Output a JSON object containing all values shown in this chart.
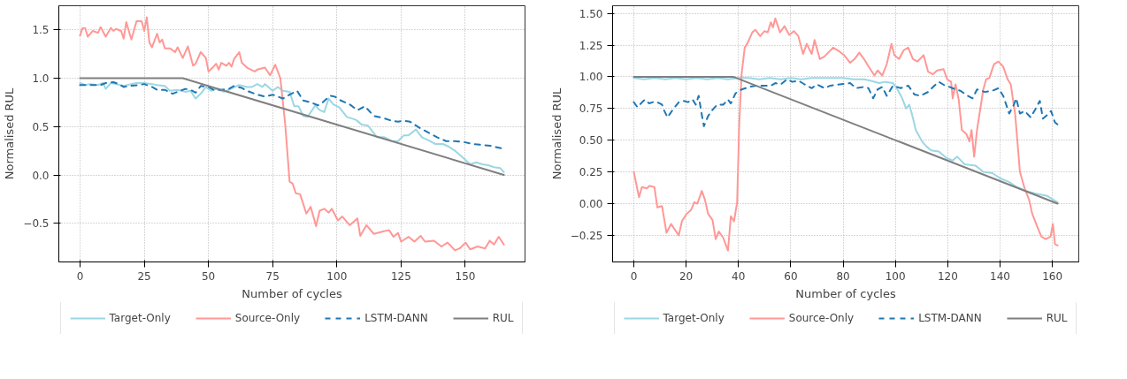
{
  "chart_data": [
    {
      "type": "line",
      "xlabel": "Number of cycles",
      "ylabel": "Normalised RUL",
      "xlim": [
        -8.25,
        173.25
      ],
      "ylim": [
        -0.9,
        1.75
      ],
      "xticks": [
        0,
        25,
        50,
        75,
        100,
        125,
        150
      ],
      "yticks": [
        -0.5,
        {
          "value": 0,
          "label": "0.0"
        },
        0.5,
        {
          "value": 1,
          "label": "1.0"
        },
        1.5
      ],
      "grid": true,
      "legend": "bottom",
      "series": [
        {
          "name": "Target-Only",
          "color": "#9bd7e3",
          "line_style": "solid",
          "x": [
            0,
            2,
            4,
            7,
            9,
            10,
            12,
            14,
            17,
            20,
            22,
            25,
            28,
            30,
            33,
            35,
            38,
            41,
            43,
            45,
            47,
            49,
            51,
            53,
            56,
            58,
            61,
            62,
            65,
            67,
            69,
            71,
            72,
            75,
            77,
            79,
            81.6,
            83.4,
            85.1,
            86.9,
            88.6,
            91.6,
            93.3,
            95.1,
            96.8,
            98.6,
            100.9,
            103.9,
            107.4,
            109.7,
            112.1,
            115.6,
            118.5,
            121.4,
            123.8,
            126.1,
            127.9,
            130.8,
            133.1,
            135.5,
            138.4,
            141.3,
            143.7,
            146,
            149.5,
            151.9,
            154.2,
            156.6,
            158.9,
            161.2,
            163.6,
            165
          ],
          "values": [
            0.95,
            0.93,
            0.94,
            0.93,
            0.95,
            0.89,
            0.95,
            0.94,
            0.92,
            0.94,
            0.95,
            0.95,
            0.94,
            0.93,
            0.92,
            0.87,
            0.88,
            0.86,
            0.87,
            0.79,
            0.84,
            0.91,
            0.87,
            0.89,
            0.86,
            0.88,
            0.92,
            0.93,
            0.91,
            0.91,
            0.94,
            0.91,
            0.94,
            0.87,
            0.91,
            0.87,
            0.86,
            0.71,
            0.71,
            0.61,
            0.6,
            0.72,
            0.67,
            0.65,
            0.79,
            0.73,
            0.7,
            0.6,
            0.57,
            0.52,
            0.51,
            0.39,
            0.39,
            0.35,
            0.35,
            0.41,
            0.41,
            0.47,
            0.39,
            0.36,
            0.32,
            0.32,
            0.29,
            0.25,
            0.17,
            0.11,
            0.13,
            0.11,
            0.1,
            0.08,
            0.07,
            0.03
          ]
        },
        {
          "name": "Source-Only",
          "color": "#ff9896",
          "line_style": "solid",
          "x": [
            0,
            1,
            2,
            3,
            5,
            7,
            8,
            10,
            12,
            13,
            14,
            16,
            17,
            18,
            20,
            22,
            24,
            25,
            26,
            27,
            28,
            30,
            31,
            32,
            33,
            35,
            37,
            38,
            40,
            42,
            44,
            45,
            47,
            49,
            50,
            52,
            53,
            54,
            55,
            57,
            58,
            59,
            60,
            62,
            63,
            65,
            68,
            69,
            72,
            74,
            76,
            78,
            79.9,
            81.6,
            82.8,
            84,
            85.7,
            88.1,
            89.8,
            91.9,
            93.3,
            95.1,
            96.8,
            98,
            100.4,
            102.1,
            105,
            108,
            109.1,
            111.5,
            114.4,
            117.3,
            120.3,
            122,
            123.8,
            125,
            127.9,
            130.2,
            132.6,
            134.3,
            137.8,
            140.7,
            143.1,
            146,
            147.8,
            150.1,
            151.9,
            154.8,
            157.7,
            159.5,
            161.2,
            163,
            165
          ],
          "values": [
            1.44,
            1.52,
            1.52,
            1.43,
            1.49,
            1.47,
            1.53,
            1.43,
            1.52,
            1.49,
            1.51,
            1.49,
            1.41,
            1.58,
            1.4,
            1.59,
            1.59,
            1.49,
            1.63,
            1.37,
            1.32,
            1.46,
            1.37,
            1.4,
            1.31,
            1.31,
            1.27,
            1.32,
            1.21,
            1.33,
            1.13,
            1.15,
            1.27,
            1.21,
            1.07,
            1.12,
            1.15,
            1.09,
            1.16,
            1.13,
            1.16,
            1.12,
            1.2,
            1.27,
            1.16,
            1.11,
            1.07,
            1.09,
            1.11,
            1.03,
            1.14,
            1.0,
            0.52,
            -0.07,
            -0.09,
            -0.19,
            -0.2,
            -0.4,
            -0.33,
            -0.53,
            -0.37,
            -0.35,
            -0.39,
            -0.35,
            -0.47,
            -0.43,
            -0.52,
            -0.45,
            -0.63,
            -0.52,
            -0.61,
            -0.59,
            -0.57,
            -0.64,
            -0.6,
            -0.69,
            -0.64,
            -0.69,
            -0.63,
            -0.69,
            -0.68,
            -0.74,
            -0.7,
            -0.78,
            -0.76,
            -0.7,
            -0.77,
            -0.74,
            -0.76,
            -0.68,
            -0.72,
            -0.64,
            -0.72
          ]
        },
        {
          "name": "LSTM-DANN",
          "color": "#1f77b4",
          "line_style": "dashed",
          "x": [
            0,
            4,
            8,
            10,
            13,
            15,
            17,
            19,
            23,
            25,
            28,
            30,
            33,
            36,
            38,
            41,
            43,
            45,
            47,
            50,
            52,
            55,
            58,
            60,
            63,
            65,
            69,
            72,
            75,
            77,
            79,
            81.6,
            84.5,
            86.9,
            89.8,
            92.7,
            94.5,
            97.4,
            99.2,
            101.5,
            105,
            108,
            110.9,
            114.4,
            117.9,
            121.4,
            123.8,
            126.1,
            128.5,
            132,
            135.5,
            139,
            142.5,
            146,
            149.5,
            153,
            156.6,
            160.1,
            164.8
          ],
          "values": [
            0.93,
            0.93,
            0.93,
            0.95,
            0.96,
            0.94,
            0.91,
            0.92,
            0.93,
            0.94,
            0.91,
            0.88,
            0.88,
            0.84,
            0.86,
            0.89,
            0.88,
            0.85,
            0.92,
            0.91,
            0.88,
            0.88,
            0.89,
            0.92,
            0.9,
            0.87,
            0.83,
            0.81,
            0.83,
            0.81,
            0.79,
            0.83,
            0.87,
            0.77,
            0.75,
            0.72,
            0.75,
            0.82,
            0.81,
            0.77,
            0.73,
            0.67,
            0.71,
            0.61,
            0.59,
            0.56,
            0.55,
            0.56,
            0.55,
            0.49,
            0.44,
            0.39,
            0.35,
            0.35,
            0.34,
            0.32,
            0.31,
            0.3,
            0.27
          ]
        },
        {
          "name": "RUL",
          "color": "#7f7f7f",
          "line_style": "solid",
          "x": [
            0,
            40,
            165
          ],
          "values": [
            1,
            1,
            0
          ]
        }
      ]
    },
    {
      "type": "line",
      "xlabel": "Number of cycles",
      "ylabel": "Normalised RUL",
      "xlim": [
        -8.1,
        170.1
      ],
      "ylim": [
        -0.46,
        1.56
      ],
      "xticks": [
        0,
        20,
        40,
        60,
        80,
        100,
        120,
        140,
        160
      ],
      "yticks": [
        {
          "value": -0.25,
          "label": "−0.25"
        },
        {
          "value": 0,
          "label": "0.00"
        },
        {
          "value": 0.25,
          "label": "0.25"
        },
        {
          "value": 0.5,
          "label": "0.50"
        },
        {
          "value": 0.75,
          "label": "0.75"
        },
        {
          "value": 1,
          "label": "1.00"
        },
        {
          "value": 1.25,
          "label": "1.25"
        },
        {
          "value": 1.5,
          "label": "1.50"
        }
      ],
      "grid": true,
      "legend": "bottom",
      "series": [
        {
          "name": "Target-Only",
          "color": "#9bd7e3",
          "line_style": "solid",
          "x": [
            0,
            4,
            8,
            12,
            16,
            20,
            24,
            28,
            32,
            36,
            40,
            44,
            48,
            52,
            56,
            60,
            64,
            68,
            72,
            76,
            80,
            84,
            88,
            90.3,
            93.8,
            96.1,
            99.1,
            100.8,
            102.6,
            104.1,
            105.3,
            106.4,
            107.8,
            110.2,
            111.9,
            113.7,
            116.6,
            119.5,
            121.9,
            123.6,
            126.5,
            130.6,
            133.6,
            137.1,
            140,
            143.5,
            146.4,
            149.9,
            153.4,
            158.1,
            162
          ],
          "values": [
            0.99,
            0.98,
            0.99,
            0.98,
            0.99,
            0.98,
            0.99,
            0.98,
            0.99,
            0.98,
            0.99,
            0.99,
            0.98,
            0.99,
            0.98,
            0.99,
            0.98,
            0.99,
            0.99,
            0.99,
            0.99,
            0.98,
            0.98,
            0.97,
            0.95,
            0.96,
            0.95,
            0.9,
            0.83,
            0.75,
            0.78,
            0.7,
            0.58,
            0.49,
            0.45,
            0.42,
            0.41,
            0.36,
            0.34,
            0.37,
            0.31,
            0.3,
            0.25,
            0.24,
            0.2,
            0.17,
            0.13,
            0.1,
            0.08,
            0.06,
            0.01
          ]
        },
        {
          "name": "Source-Only",
          "color": "#ff9896",
          "line_style": "solid",
          "x": [
            0,
            2,
            3.1,
            4.9,
            6.1,
            7.9,
            9,
            10.8,
            12.5,
            14.3,
            15.5,
            17.2,
            18.4,
            20.2,
            21.9,
            23.1,
            24.3,
            26,
            27.2,
            28.4,
            30.1,
            31.3,
            32.5,
            34.2,
            36,
            37.1,
            38.3,
            39.5,
            40.3,
            41.2,
            42.4,
            43.6,
            45.3,
            46.5,
            48.3,
            50,
            51.2,
            52.4,
            53.2,
            54.1,
            55.9,
            57.6,
            59.4,
            61.2,
            62.9,
            64.7,
            66.1,
            68,
            69.1,
            71.1,
            72.9,
            76.2,
            78.6,
            80.4,
            82.7,
            84.4,
            86.2,
            88,
            89.8,
            92,
            93.2,
            95,
            96.7,
            98.5,
            99.6,
            101.4,
            103.2,
            104.9,
            106.7,
            108.4,
            110.8,
            112.5,
            114.3,
            116,
            118.4,
            119.8,
            121.3,
            121.9,
            123,
            124.2,
            125.4,
            127.1,
            128.3,
            129.1,
            130.1,
            131.2,
            132.4,
            133.6,
            134.7,
            135.9,
            137.7,
            139.4,
            141.2,
            142.9,
            144.1,
            145.8,
            147.6,
            149.4,
            151.1,
            152.3,
            154,
            155.8,
            157.5,
            159.3,
            160.2,
            161,
            162
          ],
          "values": [
            0.25,
            0.05,
            0.13,
            0.12,
            0.14,
            0.13,
            -0.03,
            -0.02,
            -0.23,
            -0.16,
            -0.2,
            -0.25,
            -0.14,
            -0.08,
            -0.05,
            0.01,
            0.0,
            0.1,
            0.03,
            -0.08,
            -0.13,
            -0.28,
            -0.22,
            -0.27,
            -0.37,
            -0.1,
            -0.14,
            0.01,
            0.62,
            1.02,
            1.23,
            1.27,
            1.35,
            1.37,
            1.32,
            1.36,
            1.35,
            1.43,
            1.39,
            1.46,
            1.35,
            1.4,
            1.33,
            1.36,
            1.32,
            1.18,
            1.26,
            1.18,
            1.29,
            1.14,
            1.16,
            1.23,
            1.2,
            1.17,
            1.11,
            1.14,
            1.19,
            1.14,
            1.08,
            1.01,
            1.05,
            1.01,
            1.1,
            1.26,
            1.17,
            1.14,
            1.21,
            1.23,
            1.14,
            1.12,
            1.17,
            1.04,
            1.02,
            1.05,
            1.06,
            0.98,
            0.96,
            0.83,
            0.94,
            0.82,
            0.58,
            0.55,
            0.49,
            0.58,
            0.37,
            0.58,
            0.74,
            0.9,
            0.98,
            0.99,
            1.1,
            1.12,
            1.08,
            0.98,
            0.94,
            0.7,
            0.25,
            0.12,
            0.03,
            -0.08,
            -0.17,
            -0.26,
            -0.28,
            -0.26,
            -0.16,
            -0.32,
            -0.33
          ]
        },
        {
          "name": "LSTM-DANN",
          "color": "#1f77b4",
          "line_style": "dashed",
          "x": [
            0,
            1.4,
            3.2,
            4.3,
            5.9,
            7.3,
            9,
            10.8,
            11.7,
            12.9,
            14.9,
            17.2,
            19,
            20.7,
            22.5,
            23.7,
            24.8,
            26,
            26.8,
            28.4,
            30.1,
            31.9,
            34.2,
            36,
            37.1,
            38.9,
            41.2,
            44.2,
            47.1,
            50,
            52.4,
            54.1,
            56.2,
            58.6,
            60.6,
            62.9,
            65.3,
            68,
            70,
            72.9,
            75.2,
            78.7,
            82.7,
            85,
            88,
            89.7,
            91.5,
            93.2,
            95,
            96.7,
            99.1,
            102,
            104.9,
            107.3,
            109.6,
            112.5,
            114.9,
            116.6,
            119,
            120.7,
            123,
            124.8,
            127.7,
            129.5,
            131.2,
            134.2,
            137.1,
            139.4,
            141.2,
            143.5,
            145.3,
            146.2,
            147.6,
            149.4,
            151.7,
            153.4,
            155.2,
            156.4,
            158.1,
            159.5,
            161,
            162.2
          ],
          "values": [
            0.8,
            0.76,
            0.8,
            0.82,
            0.79,
            0.8,
            0.8,
            0.78,
            0.73,
            0.68,
            0.74,
            0.8,
            0.81,
            0.8,
            0.82,
            0.78,
            0.85,
            0.7,
            0.61,
            0.69,
            0.74,
            0.78,
            0.78,
            0.82,
            0.79,
            0.87,
            0.9,
            0.92,
            0.93,
            0.93,
            0.93,
            0.95,
            0.94,
            0.98,
            0.96,
            0.97,
            0.94,
            0.91,
            0.94,
            0.91,
            0.93,
            0.94,
            0.95,
            0.91,
            0.92,
            0.91,
            0.83,
            0.9,
            0.92,
            0.85,
            0.93,
            0.91,
            0.93,
            0.86,
            0.85,
            0.88,
            0.93,
            0.96,
            0.93,
            0.92,
            0.9,
            0.89,
            0.85,
            0.83,
            0.9,
            0.88,
            0.89,
            0.91,
            0.85,
            0.71,
            0.78,
            0.83,
            0.71,
            0.73,
            0.68,
            0.74,
            0.81,
            0.67,
            0.7,
            0.73,
            0.64,
            0.62
          ]
        },
        {
          "name": "RUL",
          "color": "#7f7f7f",
          "line_style": "solid",
          "x": [
            0,
            38,
            162
          ],
          "values": [
            1,
            1,
            0
          ]
        }
      ]
    }
  ]
}
